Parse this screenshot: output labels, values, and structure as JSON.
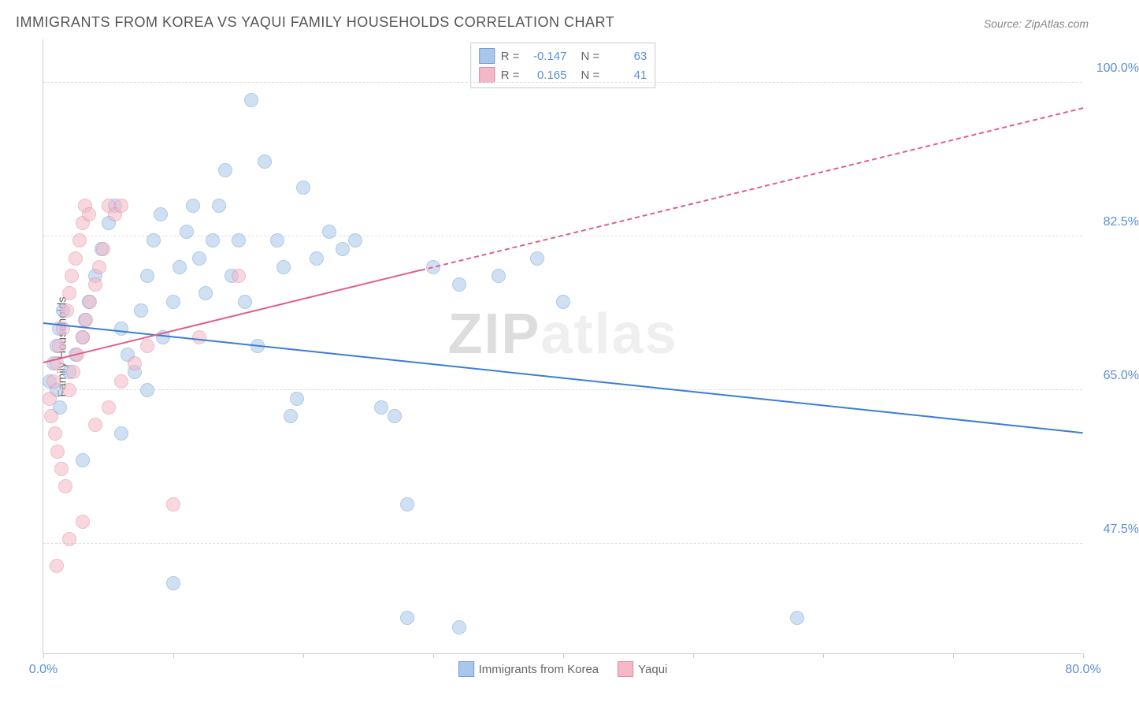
{
  "title": "IMMIGRANTS FROM KOREA VS YAQUI FAMILY HOUSEHOLDS CORRELATION CHART",
  "source_label": "Source: ZipAtlas.com",
  "y_axis_label": "Family Households",
  "watermark": {
    "part1": "ZIP",
    "part2": "atlas"
  },
  "chart": {
    "type": "scatter",
    "xlim": [
      0,
      80
    ],
    "ylim": [
      35,
      105
    ],
    "x_ticks": [
      0,
      10,
      20,
      30,
      40,
      50,
      60,
      70,
      80
    ],
    "x_tick_labels": {
      "0": "0.0%",
      "80": "80.0%"
    },
    "y_ticks": [
      47.5,
      65.0,
      82.5,
      100.0
    ],
    "y_tick_labels": [
      "47.5%",
      "65.0%",
      "82.5%",
      "100.0%"
    ],
    "background_color": "#ffffff",
    "grid_color": "#dddddd",
    "series": [
      {
        "name": "Immigrants from Korea",
        "fill_color": "#a9c7ea",
        "stroke_color": "#6f9fd8",
        "fill_opacity": 0.55,
        "trend_color": "#3b7dd8",
        "trend_y_start": 72.5,
        "trend_y_end": 60.0,
        "trend_solid_end_x": 80,
        "R": "-0.147",
        "N": "63",
        "points": [
          [
            0.5,
            66
          ],
          [
            0.8,
            68
          ],
          [
            1.0,
            70
          ],
          [
            1.2,
            72
          ],
          [
            1.5,
            74
          ],
          [
            1.0,
            65
          ],
          [
            1.3,
            63
          ],
          [
            2.0,
            67
          ],
          [
            2.5,
            69
          ],
          [
            3.0,
            71
          ],
          [
            3.2,
            73
          ],
          [
            3.5,
            75
          ],
          [
            4.0,
            78
          ],
          [
            4.5,
            81
          ],
          [
            5.0,
            84
          ],
          [
            5.5,
            86
          ],
          [
            6.0,
            72
          ],
          [
            6.5,
            69
          ],
          [
            7.0,
            67
          ],
          [
            7.5,
            74
          ],
          [
            8.0,
            78
          ],
          [
            8.5,
            82
          ],
          [
            9.0,
            85
          ],
          [
            9.2,
            71
          ],
          [
            10.0,
            75
          ],
          [
            10.5,
            79
          ],
          [
            11.0,
            83
          ],
          [
            11.5,
            86
          ],
          [
            12.0,
            80
          ],
          [
            12.5,
            76
          ],
          [
            13.0,
            82
          ],
          [
            13.5,
            86
          ],
          [
            14.0,
            90
          ],
          [
            14.5,
            78
          ],
          [
            15.0,
            82
          ],
          [
            15.5,
            75
          ],
          [
            16.0,
            98
          ],
          [
            16.5,
            70
          ],
          [
            17.0,
            91
          ],
          [
            18.0,
            82
          ],
          [
            18.5,
            79
          ],
          [
            19.0,
            62
          ],
          [
            19.5,
            64
          ],
          [
            20.0,
            88
          ],
          [
            21.0,
            80
          ],
          [
            22.0,
            83
          ],
          [
            23.0,
            81
          ],
          [
            24.0,
            82
          ],
          [
            26.0,
            63
          ],
          [
            27.0,
            62
          ],
          [
            28.0,
            52
          ],
          [
            30.0,
            79
          ],
          [
            32.0,
            77
          ],
          [
            35.0,
            78
          ],
          [
            38.0,
            80
          ],
          [
            28.0,
            39
          ],
          [
            32.0,
            38
          ],
          [
            10.0,
            43
          ],
          [
            8.0,
            65
          ],
          [
            6.0,
            60
          ],
          [
            3.0,
            57
          ],
          [
            58.0,
            39
          ],
          [
            40.0,
            75
          ]
        ]
      },
      {
        "name": "Yaqui",
        "fill_color": "#f4b8c6",
        "stroke_color": "#e588a0",
        "fill_opacity": 0.55,
        "trend_color": "#e06088",
        "trend_y_start": 68.0,
        "trend_y_end": 97.0,
        "trend_solid_end_x": 29,
        "R": "0.165",
        "N": "41",
        "points": [
          [
            0.5,
            64
          ],
          [
            0.8,
            66
          ],
          [
            1.0,
            68
          ],
          [
            1.2,
            70
          ],
          [
            1.5,
            72
          ],
          [
            1.8,
            74
          ],
          [
            2.0,
            76
          ],
          [
            2.2,
            78
          ],
          [
            2.5,
            80
          ],
          [
            2.8,
            82
          ],
          [
            3.0,
            84
          ],
          [
            3.2,
            86
          ],
          [
            3.5,
            85
          ],
          [
            0.6,
            62
          ],
          [
            0.9,
            60
          ],
          [
            1.1,
            58
          ],
          [
            1.4,
            56
          ],
          [
            1.7,
            54
          ],
          [
            2.0,
            65
          ],
          [
            2.3,
            67
          ],
          [
            2.6,
            69
          ],
          [
            3.0,
            71
          ],
          [
            3.3,
            73
          ],
          [
            3.6,
            75
          ],
          [
            4.0,
            77
          ],
          [
            4.3,
            79
          ],
          [
            4.6,
            81
          ],
          [
            5.0,
            86
          ],
          [
            5.5,
            85
          ],
          [
            6.0,
            86
          ],
          [
            1.0,
            45
          ],
          [
            2.0,
            48
          ],
          [
            3.0,
            50
          ],
          [
            4.0,
            61
          ],
          [
            5.0,
            63
          ],
          [
            6.0,
            66
          ],
          [
            7.0,
            68
          ],
          [
            8.0,
            70
          ],
          [
            15.0,
            78
          ],
          [
            10.0,
            52
          ],
          [
            12.0,
            71
          ]
        ]
      }
    ]
  },
  "legend_top": {
    "r_label": "R =",
    "n_label": "N ="
  },
  "legend_bottom": {
    "items": [
      "Immigrants from Korea",
      "Yaqui"
    ]
  },
  "colors": {
    "title": "#555555",
    "source": "#888888",
    "axis_text": "#666666",
    "tick_label": "#5b8fd6"
  }
}
